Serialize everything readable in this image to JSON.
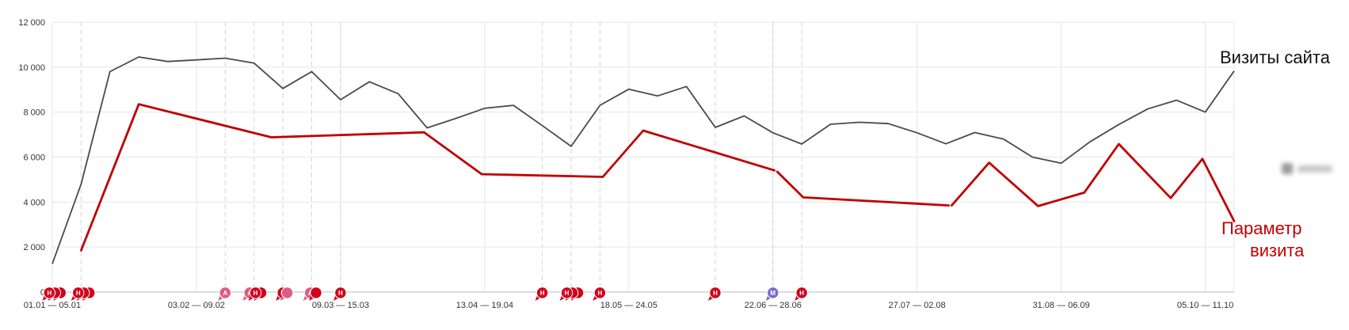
{
  "chart_data": {
    "type": "line",
    "ylim": [
      0,
      12000
    ],
    "yticks": [
      0,
      2000,
      4000,
      6000,
      8000,
      10000,
      12000
    ],
    "ytick_labels": [
      "0",
      "2 000",
      "4 000",
      "6 000",
      "8 000",
      "10 000",
      "12 000"
    ],
    "x_points": 41,
    "xtick_labels": [
      {
        "index": 0,
        "label": "01.01 — 05.01"
      },
      {
        "index": 5,
        "label": "03.02 — 09.02"
      },
      {
        "index": 10,
        "label": "09.03 — 15.03"
      },
      {
        "index": 15,
        "label": "13.04 — 19.04"
      },
      {
        "index": 20,
        "label": "18.05 — 24.05"
      },
      {
        "index": 25,
        "label": "22.06 — 28.06"
      },
      {
        "index": 30,
        "label": "27.07 — 02.08"
      },
      {
        "index": 35,
        "label": "31.08 — 06.09"
      },
      {
        "index": 40,
        "label": "05.10 — 11.10"
      }
    ],
    "week_lines": [
      1,
      6,
      7,
      8,
      9,
      10,
      17,
      18,
      19,
      23,
      25,
      26
    ],
    "series": [
      {
        "name": "Визиты сайта",
        "color": "#4a4a4a",
        "points": [
          [
            0,
            1250
          ],
          [
            1,
            4800
          ],
          [
            2,
            9800
          ],
          [
            3,
            10450
          ],
          [
            4,
            10250
          ],
          [
            5,
            10320
          ],
          [
            6,
            10400
          ],
          [
            7,
            10180
          ],
          [
            8,
            9050
          ],
          [
            9,
            9800
          ],
          [
            10,
            8550
          ],
          [
            11,
            9350
          ],
          [
            12,
            8820
          ],
          [
            13,
            7300
          ],
          [
            14,
            7720
          ],
          [
            15,
            8170
          ],
          [
            16,
            8300
          ],
          [
            17,
            7400
          ],
          [
            18,
            6480
          ],
          [
            19,
            8300
          ],
          [
            20,
            9020
          ],
          [
            21,
            8720
          ],
          [
            22,
            9140
          ],
          [
            23,
            7320
          ],
          [
            24,
            7830
          ],
          [
            25,
            7080
          ],
          [
            26,
            6580
          ],
          [
            27,
            7460
          ],
          [
            28,
            7550
          ],
          [
            29,
            7490
          ],
          [
            30,
            7080
          ],
          [
            31,
            6590
          ],
          [
            32,
            7090
          ],
          [
            33,
            6800
          ],
          [
            34,
            6000
          ],
          [
            35,
            5730
          ],
          [
            36,
            6680
          ],
          [
            37,
            7450
          ],
          [
            38,
            8140
          ],
          [
            39,
            8530
          ],
          [
            40,
            8000
          ],
          [
            41,
            9830
          ]
        ]
      },
      {
        "name": "Параметр визита",
        "color": "#c00000",
        "segments": [
          [
            [
              1,
              1850
            ],
            [
              3,
              8350
            ],
            [
              7.6,
              6880
            ],
            [
              12.9,
              7100
            ],
            [
              14.9,
              5240
            ],
            [
              19.1,
              5120
            ],
            [
              20.5,
              7180
            ],
            [
              25.05,
              5410
            ]
          ],
          [
            [
              25.15,
              5350
            ],
            [
              26.05,
              4210
            ],
            [
              31.1,
              3850
            ]
          ],
          [
            [
              31.2,
              3850
            ],
            [
              32.5,
              5750
            ],
            [
              34.2,
              3820
            ],
            [
              35.8,
              4420
            ],
            [
              37.0,
              6580
            ],
            [
              38.8,
              4180
            ],
            [
              39.9,
              5920
            ],
            [
              41,
              3150
            ]
          ]
        ]
      }
    ],
    "annotations": [
      {
        "index": -0.1,
        "type": "Н",
        "color": "#d0021b",
        "stack": 3
      },
      {
        "index": 0.9,
        "type": "Н",
        "color": "#d0021b",
        "stack": 3
      },
      {
        "index": 6.0,
        "type": "А",
        "color": "#e05a82",
        "stack": 1
      },
      {
        "index": 6.85,
        "type": "А",
        "color": "#e05a82",
        "stack": 1
      },
      {
        "index": 7.05,
        "type": "Н",
        "color": "#d0021b",
        "stack": 2
      },
      {
        "index": 8.0,
        "type": "Н",
        "color": "#d0021b",
        "stack": 1
      },
      {
        "index": 8.15,
        "type": "",
        "color": "#e05a82",
        "stack": 1
      },
      {
        "index": 8.95,
        "type": "А",
        "color": "#e05a82",
        "stack": 1
      },
      {
        "index": 9.15,
        "type": "",
        "color": "#d0021b",
        "stack": 1
      },
      {
        "index": 10.0,
        "type": "Н",
        "color": "#d0021b",
        "stack": 1
      },
      {
        "index": 17.0,
        "type": "Н",
        "color": "#d0021b",
        "stack": 1
      },
      {
        "index": 17.85,
        "type": "Н",
        "color": "#d0021b",
        "stack": 3
      },
      {
        "index": 19.0,
        "type": "Н",
        "color": "#d0021b",
        "stack": 1
      },
      {
        "index": 23.0,
        "type": "Н",
        "color": "#d0021b",
        "stack": 1
      },
      {
        "index": 25.0,
        "type": "М",
        "color": "#7b6bc9",
        "stack": 1
      },
      {
        "index": 26.0,
        "type": "Н",
        "color": "#d0021b",
        "stack": 1
      }
    ]
  },
  "labels": {
    "visits": "Визиты сайта",
    "param_line1": "Параметр",
    "param_line2": "визита"
  },
  "legend_blurred": "Визит"
}
